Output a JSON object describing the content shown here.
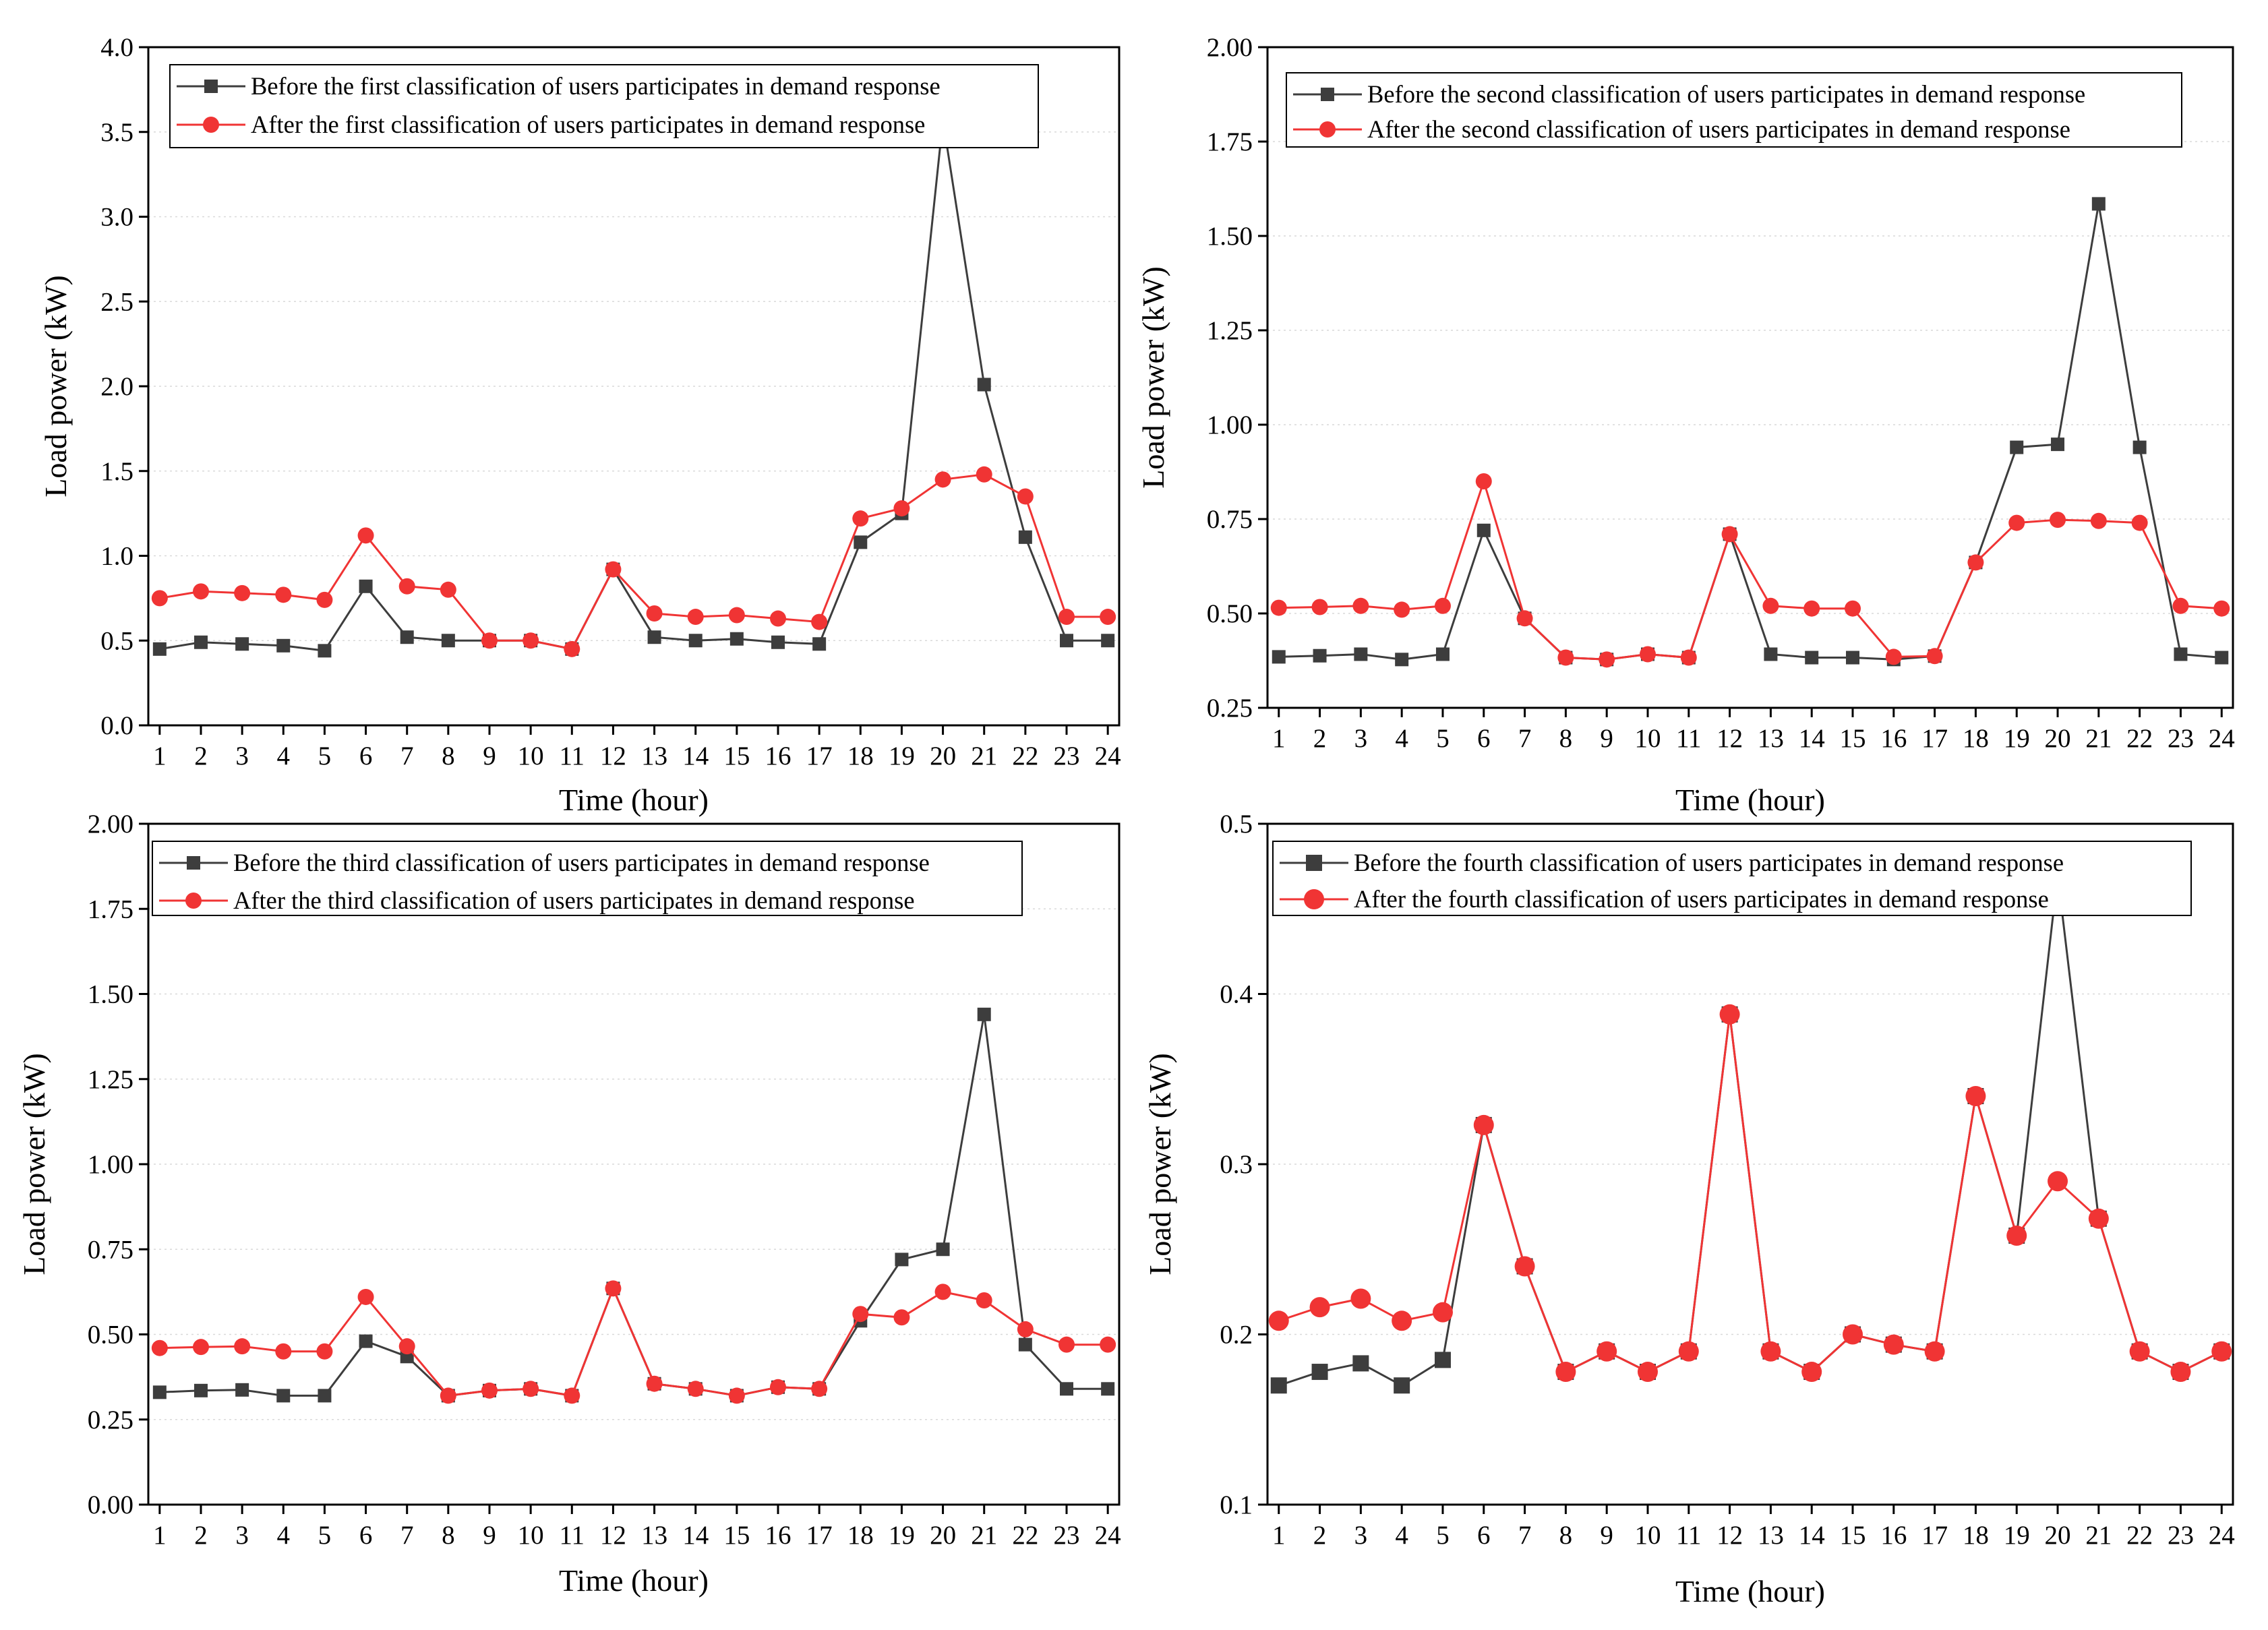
{
  "colors": {
    "before": "#3d3d3d",
    "after": "#f03434",
    "grid": "#d9d9d9",
    "axis": "#000000"
  },
  "chart_data": [
    {
      "type": "line",
      "xlabel": "Time (hour)",
      "ylabel": "Load power (kW)",
      "x": [
        1,
        2,
        3,
        4,
        5,
        6,
        7,
        8,
        9,
        10,
        11,
        12,
        13,
        14,
        15,
        16,
        17,
        18,
        19,
        20,
        21,
        22,
        23,
        24
      ],
      "ylim": [
        0,
        4.0
      ],
      "yticks": [
        "0.0",
        "0.5",
        "1.0",
        "1.5",
        "2.0",
        "2.5",
        "3.0",
        "3.5",
        "4.0"
      ],
      "grid": true,
      "legend_position": "top",
      "series": [
        {
          "name": "Before the first classification of users participates in demand response",
          "marker": "square",
          "values": [
            0.45,
            0.49,
            0.48,
            0.47,
            0.44,
            0.82,
            0.52,
            0.5,
            0.5,
            0.5,
            0.45,
            0.92,
            0.52,
            0.5,
            0.51,
            0.49,
            0.48,
            1.08,
            1.25,
            3.57,
            2.01,
            1.11,
            0.5,
            0.5
          ]
        },
        {
          "name": "After the first classification of users participates in demand response",
          "marker": "circle",
          "values": [
            0.75,
            0.79,
            0.78,
            0.77,
            0.74,
            1.12,
            0.82,
            0.8,
            0.5,
            0.5,
            0.45,
            0.92,
            0.66,
            0.64,
            0.65,
            0.63,
            0.61,
            1.22,
            1.28,
            1.45,
            1.48,
            1.35,
            0.64,
            0.64
          ]
        }
      ]
    },
    {
      "type": "line",
      "xlabel": "Time (hour)",
      "ylabel": "Load power (kW)",
      "x": [
        1,
        2,
        3,
        4,
        5,
        6,
        7,
        8,
        9,
        10,
        11,
        12,
        13,
        14,
        15,
        16,
        17,
        18,
        19,
        20,
        21,
        22,
        23,
        24
      ],
      "ylim": [
        0.25,
        2.0
      ],
      "yticks": [
        "0.25",
        "0.50",
        "0.75",
        "1.00",
        "1.25",
        "1.50",
        "1.75",
        "2.00"
      ],
      "grid": true,
      "legend_position": "top",
      "series": [
        {
          "name": "Before the second classification of users participates in demand response",
          "marker": "square",
          "values": [
            0.385,
            0.388,
            0.392,
            0.378,
            0.392,
            0.72,
            0.487,
            0.383,
            0.378,
            0.392,
            0.383,
            0.71,
            0.392,
            0.383,
            0.383,
            0.378,
            0.387,
            0.635,
            0.94,
            0.948,
            1.585,
            0.94,
            0.392,
            0.383
          ]
        },
        {
          "name": "After the second classification of users participates in demand response",
          "marker": "circle",
          "values": [
            0.515,
            0.517,
            0.52,
            0.51,
            0.52,
            0.85,
            0.487,
            0.383,
            0.378,
            0.392,
            0.383,
            0.71,
            0.52,
            0.513,
            0.513,
            0.385,
            0.387,
            0.635,
            0.74,
            0.748,
            0.745,
            0.74,
            0.52,
            0.513
          ]
        }
      ]
    },
    {
      "type": "line",
      "xlabel": "Time (hour)",
      "ylabel": "Load power (kW)",
      "x": [
        1,
        2,
        3,
        4,
        5,
        6,
        7,
        8,
        9,
        10,
        11,
        12,
        13,
        14,
        15,
        16,
        17,
        18,
        19,
        20,
        21,
        22,
        23,
        24
      ],
      "ylim": [
        0,
        2.0
      ],
      "yticks": [
        "0.00",
        "0.25",
        "0.50",
        "0.75",
        "1.00",
        "1.25",
        "1.50",
        "1.75",
        "2.00"
      ],
      "grid": true,
      "legend_position": "top",
      "series": [
        {
          "name": "Before the third classification of users participates in demand response",
          "marker": "square",
          "values": [
            0.33,
            0.335,
            0.337,
            0.32,
            0.32,
            0.48,
            0.435,
            0.32,
            0.335,
            0.34,
            0.32,
            0.635,
            0.355,
            0.34,
            0.32,
            0.345,
            0.34,
            0.54,
            0.72,
            0.75,
            1.44,
            0.47,
            0.34,
            0.34
          ]
        },
        {
          "name": "After the third classification of users participates in demand response",
          "marker": "circle",
          "values": [
            0.46,
            0.463,
            0.465,
            0.45,
            0.45,
            0.61,
            0.465,
            0.32,
            0.335,
            0.34,
            0.32,
            0.635,
            0.355,
            0.34,
            0.32,
            0.345,
            0.34,
            0.56,
            0.55,
            0.625,
            0.6,
            0.515,
            0.47,
            0.47
          ]
        }
      ]
    },
    {
      "type": "line",
      "xlabel": "Time (hour)",
      "ylabel": "Load power (kW)",
      "x": [
        1,
        2,
        3,
        4,
        5,
        6,
        7,
        8,
        9,
        10,
        11,
        12,
        13,
        14,
        15,
        16,
        17,
        18,
        19,
        20,
        21,
        22,
        23,
        24
      ],
      "ylim": [
        0.1,
        0.5
      ],
      "yticks": [
        "0.1",
        "0.2",
        "0.3",
        "0.4",
        "0.5"
      ],
      "grid": true,
      "legend_position": "top",
      "series": [
        {
          "name": "Before the fourth classification of users participates in demand response",
          "marker": "square",
          "values": [
            0.17,
            0.178,
            0.183,
            0.17,
            0.185,
            0.323,
            0.24,
            0.178,
            0.19,
            0.178,
            0.19,
            0.388,
            0.19,
            0.178,
            0.2,
            0.194,
            0.19,
            0.34,
            0.258,
            0.47,
            0.268,
            0.19,
            0.178,
            0.19
          ]
        },
        {
          "name": "After the fourth classification of users participates in demand response",
          "marker": "circle",
          "values": [
            0.208,
            0.216,
            0.221,
            0.208,
            0.213,
            0.323,
            0.24,
            0.178,
            0.19,
            0.178,
            0.19,
            0.388,
            0.19,
            0.178,
            0.2,
            0.194,
            0.19,
            0.34,
            0.258,
            0.29,
            0.268,
            0.19,
            0.178,
            0.19
          ]
        }
      ]
    }
  ]
}
